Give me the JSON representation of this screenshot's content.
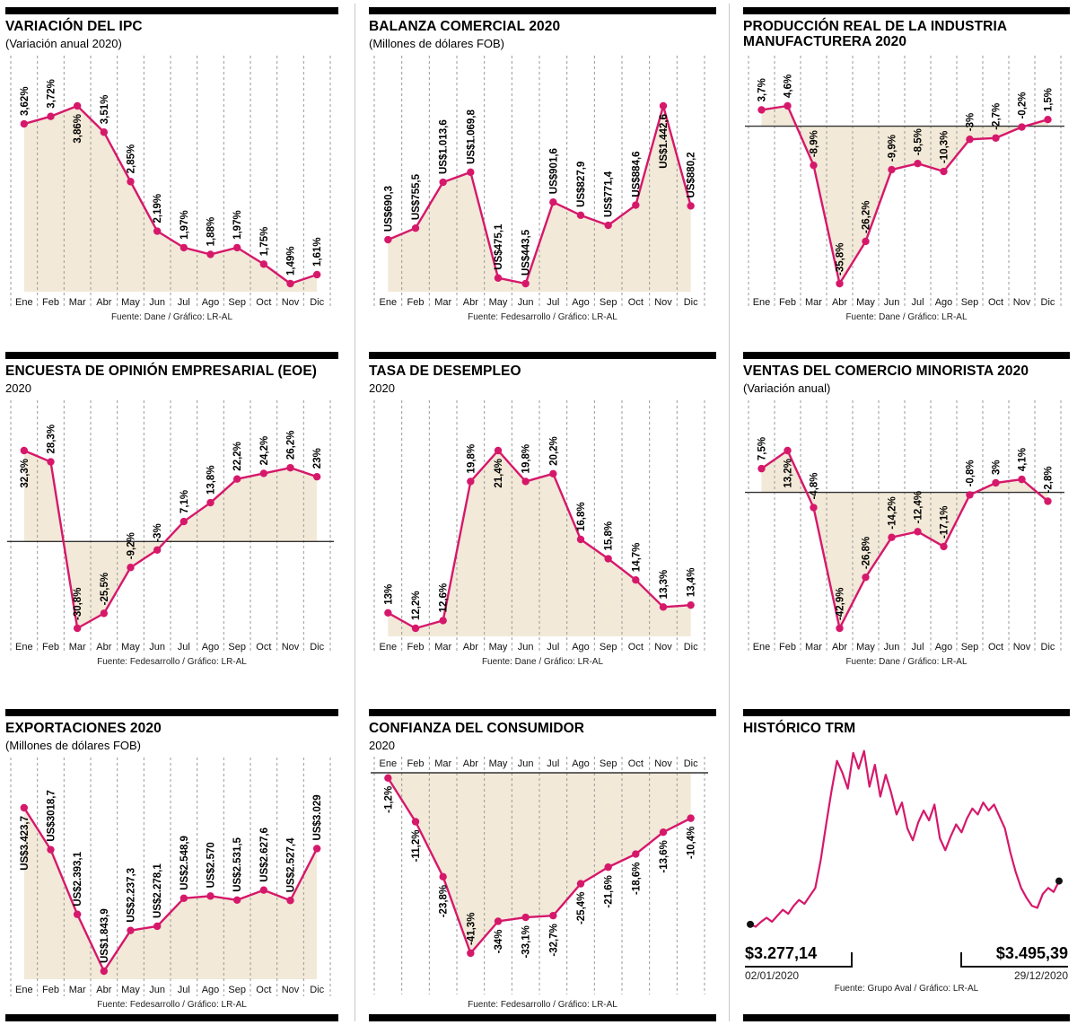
{
  "page": {
    "accent_color": "#d6186b",
    "fill_color": "#f2e9d8",
    "months": [
      "Ene",
      "Feb",
      "Mar",
      "Abr",
      "May",
      "Jun",
      "Jul",
      "Ago",
      "Sep",
      "Oct",
      "Nov",
      "Dic"
    ]
  },
  "chart_data": [
    {
      "type": "line",
      "title": "VARIACIÓN DEL IPC",
      "subtitle": "(Variación anual 2020)",
      "source": "Fuente: Dane / Gráfico: LR-AL",
      "categories": [
        "Ene",
        "Feb",
        "Mar",
        "Abr",
        "May",
        "Jun",
        "Jul",
        "Ago",
        "Sep",
        "Oct",
        "Nov",
        "Dic"
      ],
      "values": [
        3.62,
        3.72,
        3.86,
        3.51,
        2.85,
        2.19,
        1.97,
        1.88,
        1.97,
        1.75,
        1.49,
        1.61
      ],
      "labels": [
        "3,62%",
        "3,72%",
        "3,86%",
        "3,51%",
        "2,85%",
        "2,19%",
        "1,97%",
        "1,88%",
        "1,97%",
        "1,75%",
        "1,49%",
        "1,61%"
      ],
      "baseline": "bottom",
      "months_position": "bottom",
      "grid": "dashed-vertical"
    },
    {
      "type": "line",
      "title": "BALANZA COMERCIAL 2020",
      "subtitle": "(Millones de dólares FOB)",
      "source": "Fuente: Fedesarrollo / Gráfico: LR-AL",
      "categories": [
        "Ene",
        "Feb",
        "Mar",
        "Abr",
        "May",
        "Jun",
        "Jul",
        "Ago",
        "Sep",
        "Oct",
        "Nov",
        "Dic"
      ],
      "values": [
        690.3,
        755.5,
        1013.6,
        1069.8,
        475.1,
        443.5,
        901.6,
        827.9,
        771.4,
        884.6,
        1442.6,
        880.2
      ],
      "labels": [
        "US$690,3",
        "US$755,5",
        "US$1.013,6",
        "US$1.069,8",
        "US$475,1",
        "US$443,5",
        "US$901,6",
        "US$827,9",
        "US$771,4",
        "US$884,6",
        "US$1.442,6",
        "US$880,2"
      ],
      "baseline": "bottom",
      "months_position": "bottom",
      "grid": "dashed-vertical"
    },
    {
      "type": "line",
      "title": "PRODUCCIÓN REAL DE LA INDUSTRIA MANUFACTURERA 2020",
      "subtitle": "",
      "source": "Fuente: Dane / Gráfico: LR-AL",
      "categories": [
        "Ene",
        "Feb",
        "Mar",
        "Abr",
        "May",
        "Jun",
        "Jul",
        "Ago",
        "Sep",
        "Oct",
        "Nov",
        "Dic"
      ],
      "values": [
        3.7,
        4.6,
        -8.9,
        -35.8,
        -26.2,
        -9.9,
        -8.5,
        -10.3,
        -3,
        -2.7,
        -0.2,
        1.5
      ],
      "labels": [
        "3,7%",
        "4,6%",
        "-8,9%",
        "-35,8%",
        "-26,2%",
        "-9,9%",
        "-8,5%",
        "-10,3%",
        "-3%",
        "-2,7%",
        "-0,2%",
        "1,5%"
      ],
      "baseline": "zero",
      "months_position": "bottom",
      "grid": "dashed-vertical"
    },
    {
      "type": "line",
      "title": "ENCUESTA DE OPINIÓN EMPRESARIAL (EOE)",
      "subtitle": "2020",
      "source": "Fuente: Fedesarrollo / Gráfico: LR-AL",
      "categories": [
        "Ene",
        "Feb",
        "Mar",
        "Abr",
        "May",
        "Jun",
        "Jul",
        "Ago",
        "Sep",
        "Oct",
        "Nov",
        "Dic"
      ],
      "values": [
        32.3,
        28.3,
        -30.8,
        -25.5,
        -9.2,
        -3,
        7.1,
        13.8,
        22.2,
        24.2,
        26.2,
        23
      ],
      "labels": [
        "32,3%",
        "28,3%",
        "-30,8%",
        "-25,5%",
        "-9,2%",
        "-3%",
        "7,1%",
        "13,8%",
        "22,2%",
        "24,2%",
        "26,2%",
        "23%"
      ],
      "baseline": "zero",
      "months_position": "bottom",
      "grid": "dashed-vertical"
    },
    {
      "type": "line",
      "title": "TASA DE DESEMPLEO",
      "subtitle": "2020",
      "source": "Fuente: Dane / Gráfico: LR-AL",
      "categories": [
        "Ene",
        "Feb",
        "Mar",
        "Abr",
        "May",
        "Jun",
        "Jul",
        "Ago",
        "Sep",
        "Oct",
        "Nov",
        "Dic"
      ],
      "values": [
        13,
        12.2,
        12.6,
        19.8,
        21.4,
        19.8,
        20.2,
        16.8,
        15.8,
        14.7,
        13.3,
        13.4
      ],
      "labels": [
        "13%",
        "12,2%",
        "12,6%",
        "19,8%",
        "21,4%",
        "19,8%",
        "20,2%",
        "16,8%",
        "15,8%",
        "14,7%",
        "13,3%",
        "13,4%"
      ],
      "baseline": "bottom",
      "months_position": "bottom",
      "grid": "dashed-vertical"
    },
    {
      "type": "line",
      "title": "VENTAS DEL COMERCIO MINORISTA 2020",
      "subtitle": "(Variación anual)",
      "source": "Fuente: Dane / Gráfico: LR-AL",
      "categories": [
        "Ene",
        "Feb",
        "Mar",
        "Abr",
        "May",
        "Jun",
        "Jul",
        "Ago",
        "Sep",
        "Oct",
        "Nov",
        "Dic"
      ],
      "values": [
        7.5,
        13.2,
        -4.8,
        -42.9,
        -26.8,
        -14.2,
        -12.4,
        -17.1,
        -0.8,
        3,
        4.1,
        -2.8
      ],
      "labels": [
        "7,5%",
        "13,2%",
        "-4,8%",
        "-42,9%",
        "-26,8%",
        "-14,2%",
        "-12,4%",
        "-17,1%",
        "-0,8%",
        "3%",
        "4,1%",
        "-2,8%"
      ],
      "baseline": "zero",
      "months_position": "bottom",
      "grid": "dashed-vertical"
    },
    {
      "type": "line",
      "title": "EXPORTACIONES 2020",
      "subtitle": "(Millones de dólares FOB)",
      "source": "Fuente: Fedesarrollo / Gráfico: LR-AL",
      "categories": [
        "Ene",
        "Feb",
        "Mar",
        "Abr",
        "May",
        "Jun",
        "Jul",
        "Ago",
        "Sep",
        "Oct",
        "Nov",
        "Dic"
      ],
      "values": [
        3423.7,
        3018.7,
        2393.1,
        1843.9,
        2237.3,
        2278.1,
        2548.9,
        2570,
        2531.5,
        2627.6,
        2527.4,
        3029
      ],
      "labels": [
        "US$3.423,7",
        "US$3018,7",
        "US$2.393,1",
        "US$1.843,9",
        "US$2.237,3",
        "US$2.278,1",
        "US$2.548,9",
        "US$2.570",
        "US$2.531,5",
        "US$2.627,6",
        "US$2.527,4",
        "US$3.029"
      ],
      "baseline": "bottom",
      "months_position": "bottom",
      "grid": "dashed-vertical"
    },
    {
      "type": "line",
      "title": "CONFIANZA DEL CONSUMIDOR",
      "subtitle": "2020",
      "source": "Fuente: Fedesarrollo / Gráfico: LR-AL",
      "categories": [
        "Ene",
        "Feb",
        "Mar",
        "Abr",
        "May",
        "Jun",
        "Jul",
        "Ago",
        "Sep",
        "Oct",
        "Nov",
        "Dic"
      ],
      "values": [
        -1.2,
        -11.2,
        -23.8,
        -41.3,
        -34,
        -33.1,
        -32.7,
        -25.4,
        -21.6,
        -18.6,
        -13.6,
        -10.4
      ],
      "labels": [
        "-1,2%",
        "-11,2%",
        "-23,8%",
        "-41,3%",
        "-34%",
        "-33,1%",
        "-32,7%",
        "-25,4%",
        "-21,6%",
        "-18,6%",
        "-13,6%",
        "-10,4%"
      ],
      "baseline": "zero",
      "months_position": "top",
      "grid": "dashed-vertical"
    },
    {
      "type": "line",
      "title": "HISTÓRICO TRM",
      "source": "Fuente: Grupo Aval / Gráfico: LR-AL",
      "series": [
        {
          "name": "TRM",
          "values": [
            3277,
            3265,
            3290,
            3310,
            3290,
            3320,
            3350,
            3330,
            3370,
            3400,
            3380,
            3420,
            3460,
            3600,
            3780,
            3950,
            4100,
            4040,
            3960,
            4140,
            4060,
            4150,
            3970,
            4080,
            3920,
            4030,
            3940,
            3830,
            3890,
            3760,
            3700,
            3790,
            3850,
            3800,
            3880,
            3710,
            3650,
            3720,
            3780,
            3740,
            3810,
            3860,
            3830,
            3890,
            3850,
            3880,
            3820,
            3760,
            3640,
            3540,
            3460,
            3410,
            3370,
            3360,
            3430,
            3460,
            3440,
            3495
          ]
        }
      ],
      "ylim": [
        3240,
        4180
      ],
      "start": {
        "value": "$3.277,14",
        "date": "02/01/2020"
      },
      "end": {
        "value": "$3.495,39",
        "date": "29/12/2020"
      }
    }
  ]
}
